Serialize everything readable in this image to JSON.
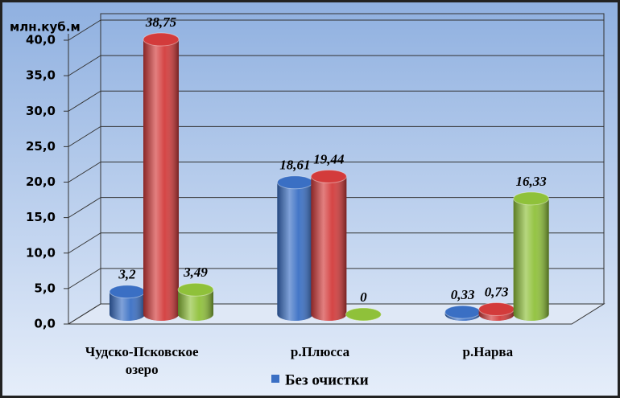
{
  "chart_data": {
    "type": "bar3d",
    "y_axis_label": "млн.куб.м",
    "categories": [
      "Чудско-Псковское озеро",
      "р.Плюсса",
      "р.Нарва"
    ],
    "series": [
      {
        "name": "Без очистки",
        "color": "#3a6fc4",
        "values": [
          3.2,
          18.61,
          0.33
        ],
        "value_labels": [
          "3,2",
          "18,61",
          "0,33"
        ]
      },
      {
        "color": "#d33b3b",
        "values": [
          38.75,
          19.44,
          0.73
        ],
        "value_labels": [
          "38,75",
          "19,44",
          "0,73"
        ]
      },
      {
        "color": "#8fc13a",
        "values": [
          3.49,
          0,
          16.33
        ],
        "value_labels": [
          "3,49",
          "0",
          "16,33"
        ]
      }
    ],
    "ylim": [
      0,
      40
    ],
    "yticks": [
      {
        "value": 0,
        "label": "0,0"
      },
      {
        "value": 5,
        "label": "5,0"
      },
      {
        "value": 10,
        "label": "10,0"
      },
      {
        "value": 15,
        "label": "15,0"
      },
      {
        "value": 20,
        "label": "20,0"
      },
      {
        "value": 25,
        "label": "25,0"
      },
      {
        "value": 30,
        "label": "30,0"
      },
      {
        "value": 35,
        "label": "35,0"
      },
      {
        "value": 40,
        "label": "40,0"
      }
    ],
    "grid": true,
    "legend": "bottom"
  }
}
